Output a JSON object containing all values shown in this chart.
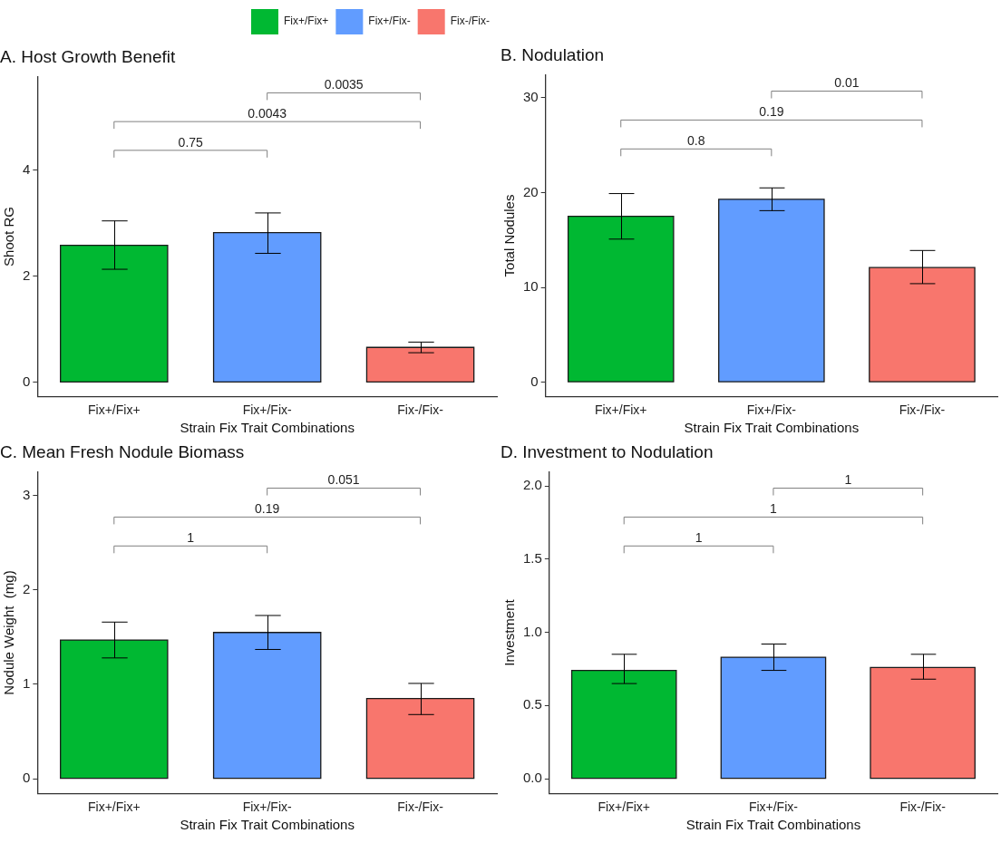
{
  "chart_data": [
    {
      "type": "bar",
      "title": "A. Host Growth Benefit",
      "xlabel": "Strain Fix Trait Combinations",
      "ylabel": "Shoot RG",
      "categories": [
        "Fix+/Fix+",
        "Fix+/Fix-",
        "Fix-/Fix-"
      ],
      "ylim": [
        -0.26,
        5.75
      ],
      "yticks": [
        0,
        2,
        4
      ],
      "grid": false,
      "legend": "top",
      "series": [
        {
          "name": "Fix+/Fix+",
          "color": "#00b832",
          "values": [
            2.58,
            null,
            null
          ],
          "errors": [
            [
              2.13,
              3.04
            ],
            null,
            null
          ]
        },
        {
          "name": "Fix+/Fix-",
          "color": "#619cff",
          "values": [
            null,
            2.82,
            null
          ],
          "errors": [
            null,
            [
              2.43,
              3.19
            ],
            null
          ]
        },
        {
          "name": "Fix-/Fix-",
          "color": "#f8766d",
          "values": [
            null,
            null,
            0.66
          ],
          "errors": [
            null,
            null,
            [
              0.56,
              0.76
            ]
          ]
        }
      ],
      "annotations": [
        "0.75",
        "0.0043",
        "0.0035"
      ]
    },
    {
      "type": "bar",
      "title": "B. Nodulation",
      "xlabel": "Strain Fix Trait Combinations",
      "ylabel": "Total Nodules",
      "categories": [
        "Fix+/Fix+",
        "Fix+/Fix-",
        "Fix-/Fix-"
      ],
      "ylim": [
        -1.48,
        32.4
      ],
      "yticks": [
        0,
        10,
        20,
        30
      ],
      "grid": false,
      "series": [
        {
          "color": "#00b832",
          "values": [
            17.5,
            null,
            null
          ],
          "errors": [
            [
              15.1,
              19.9
            ],
            null,
            null
          ]
        },
        {
          "color": "#619cff",
          "values": [
            null,
            19.3,
            null
          ],
          "errors": [
            null,
            [
              18.1,
              20.5
            ],
            null
          ]
        },
        {
          "color": "#f8766d",
          "values": [
            null,
            null,
            12.1
          ],
          "errors": [
            null,
            null,
            [
              10.4,
              13.9
            ]
          ]
        }
      ],
      "annotations": [
        "0.8",
        "0.19",
        "0.01"
      ]
    },
    {
      "type": "bar",
      "title": "C. Mean Fresh Nodule Biomass",
      "xlabel": "Strain Fix Trait Combinations",
      "ylabel": "Nodule Weight  (mg)",
      "categories": [
        "Fix+/Fix+",
        "Fix+/Fix-",
        "Fix-/Fix-"
      ],
      "ylim": [
        -0.155,
        3.25
      ],
      "yticks": [
        0,
        1,
        2,
        3
      ],
      "grid": false,
      "series": [
        {
          "color": "#00b832",
          "values": [
            1.47,
            null,
            null
          ],
          "errors": [
            [
              1.28,
              1.66
            ],
            null,
            null
          ]
        },
        {
          "color": "#619cff",
          "values": [
            null,
            1.55,
            null
          ],
          "errors": [
            null,
            [
              1.37,
              1.73
            ],
            null
          ]
        },
        {
          "color": "#f8766d",
          "values": [
            null,
            null,
            0.85
          ],
          "errors": [
            null,
            null,
            [
              0.68,
              1.01
            ]
          ]
        }
      ],
      "annotations": [
        "1",
        "0.19",
        "0.051"
      ]
    },
    {
      "type": "bar",
      "title": "D. Investment to Nodulation",
      "xlabel": "Strain Fix Trait Combinations",
      "ylabel": "Investment",
      "categories": [
        "Fix+/Fix+",
        "Fix+/Fix-",
        "Fix-/Fix-"
      ],
      "ylim": [
        -0.1,
        2.095
      ],
      "yticks": [
        {
          "value": 0,
          "label": "0.0"
        },
        {
          "value": 0.5,
          "label": "0.5"
        },
        {
          "value": 1,
          "label": "1.0"
        },
        {
          "value": 1.5,
          "label": "1.5"
        },
        {
          "value": 2,
          "label": "2.0"
        }
      ],
      "grid": false,
      "series": [
        {
          "color": "#00b832",
          "values": [
            0.74,
            null,
            null
          ],
          "errors": [
            [
              0.65,
              0.85
            ],
            null,
            null
          ]
        },
        {
          "color": "#619cff",
          "values": [
            null,
            0.83,
            null
          ],
          "errors": [
            null,
            [
              0.74,
              0.92
            ],
            null
          ]
        },
        {
          "color": "#f8766d",
          "values": [
            null,
            null,
            0.76
          ],
          "errors": [
            null,
            null,
            [
              0.68,
              0.85
            ]
          ]
        }
      ],
      "annotations": [
        "1",
        "1",
        "1"
      ]
    }
  ]
}
